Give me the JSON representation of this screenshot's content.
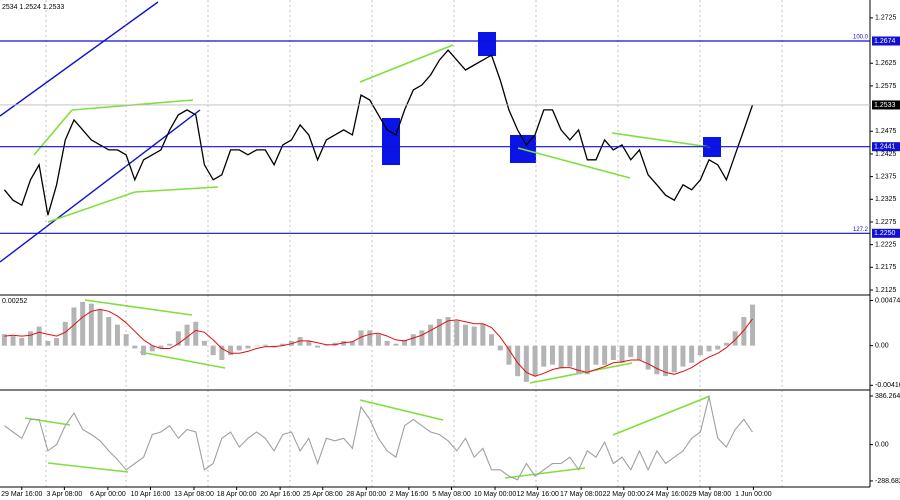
{
  "chart_data": {
    "type": "financial",
    "header": "2534 1.2524 1.2533",
    "x": [
      0,
      1,
      2,
      3,
      4,
      5,
      6,
      7,
      8,
      9,
      10,
      11,
      12,
      13,
      14,
      15,
      16,
      17,
      18,
      19,
      20,
      21,
      22,
      23,
      24,
      25,
      26,
      27,
      28,
      29,
      30,
      31,
      32,
      33,
      34,
      35,
      36,
      37,
      38,
      39,
      40,
      41,
      42,
      43,
      44,
      45,
      46,
      47,
      48,
      49,
      50,
      51,
      52,
      53,
      54,
      55,
      56,
      57,
      58,
      59,
      60,
      61,
      62,
      63,
      64,
      65,
      66,
      67,
      68,
      69,
      70,
      71,
      72,
      73,
      74,
      75,
      76,
      77,
      78,
      79,
      80,
      81,
      82,
      83,
      84,
      85,
      86
    ],
    "xlim": [
      -0.5,
      99.5
    ],
    "xticks": [
      {
        "value": 2,
        "label": "29 Mar 16:00"
      },
      {
        "value": 6.9,
        "label": "3 Apr 08:00"
      },
      {
        "value": 11.9,
        "label": "6 Apr 00:00"
      },
      {
        "value": 16.8,
        "label": "10 Apr 16:00"
      },
      {
        "value": 21.8,
        "label": "13 Apr 08:00"
      },
      {
        "value": 26.7,
        "label": "18 Apr 00:00"
      },
      {
        "value": 31.7,
        "label": "20 Apr 16:00"
      },
      {
        "value": 36.6,
        "label": "25 Apr 08:00"
      },
      {
        "value": 41.6,
        "label": "28 Apr 00:00"
      },
      {
        "value": 46.5,
        "label": "2 May 16:00"
      },
      {
        "value": 51.4,
        "label": "5 May 08:00"
      },
      {
        "value": 56.4,
        "label": "10 May 00:00"
      },
      {
        "value": 61.3,
        "label": "12 May 16:00"
      },
      {
        "value": 66.3,
        "label": "17 May 08:00"
      },
      {
        "value": 71.2,
        "label": "22 May 00:00"
      },
      {
        "value": 76.2,
        "label": "24 May 16:00"
      },
      {
        "value": 81.1,
        "label": "29 May 08:00"
      },
      {
        "value": 86.1,
        "label": "1 Jun 00:00"
      }
    ],
    "panels": [
      {
        "type": "line",
        "color": "#000000",
        "ylim": [
          1.2114,
          1.276
        ],
        "yticks": [
          1.2725,
          1.2625,
          1.2575,
          1.2475,
          1.2425,
          1.2375,
          1.2325,
          1.2275,
          1.2225,
          1.2175,
          1.2125
        ],
        "values": [
          1.2346,
          1.2323,
          1.2312,
          1.2368,
          1.2401,
          1.229,
          1.2357,
          1.2456,
          1.25,
          1.2478,
          1.2456,
          1.2445,
          1.2434,
          1.2434,
          1.2423,
          1.2368,
          1.2412,
          1.2423,
          1.2434,
          1.2478,
          1.2511,
          1.2522,
          1.2511,
          1.2401,
          1.2368,
          1.2379,
          1.2434,
          1.2434,
          1.2423,
          1.2434,
          1.2434,
          1.2401,
          1.2445,
          1.2456,
          1.2489,
          1.2467,
          1.2412,
          1.2456,
          1.2467,
          1.2478,
          1.2467,
          1.2555,
          1.2544,
          1.2511,
          1.2478,
          1.2467,
          1.2522,
          1.2566,
          1.2577,
          1.2599,
          1.2632,
          1.2654,
          1.2632,
          1.261,
          1.2621,
          1.2632,
          1.2643,
          1.2588,
          1.2522,
          1.2478,
          1.2445,
          1.2467,
          1.2522,
          1.2522,
          1.2478,
          1.2456,
          1.2478,
          1.2412,
          1.2412,
          1.2456,
          1.2434,
          1.2445,
          1.2412,
          1.2434,
          1.2379,
          1.2357,
          1.2334,
          1.2323,
          1.2357,
          1.2346,
          1.2368,
          1.2412,
          1.2401,
          1.2368,
          1.2423,
          1.2478,
          1.2533
        ],
        "levels": [
          {
            "value": 1.2674,
            "label": "1.2674",
            "fib": "100.0"
          },
          {
            "value": 1.2441,
            "label": "1.2441"
          },
          {
            "value": 1.225,
            "label": "1.2250",
            "fib": "127.2"
          }
        ],
        "last_price": 1.2533
      },
      {
        "type": "bar",
        "header": "0.00252",
        "color": "#b4b4b4",
        "ylim": [
          -0.00465,
          0.0051
        ],
        "yticks": [
          0.00474,
          {
            "value": 0,
            "label": "0.00"
          },
          -0.00416
        ],
        "values": [
          0.0012,
          0.001,
          0.0008,
          0.0015,
          0.002,
          0.0005,
          0.0008,
          0.0025,
          0.004,
          0.0046,
          0.0044,
          0.0038,
          0.003,
          0.0022,
          0.0012,
          -0.0003,
          -0.001,
          -0.0006,
          -0.0003,
          0.0002,
          0.0015,
          0.0022,
          0.0025,
          0.0005,
          -0.001,
          -0.0015,
          -0.001,
          -0.0005,
          -0.0003,
          0,
          0.0001,
          -0.0002,
          0.0002,
          0.0005,
          0.0009,
          0.0005,
          -0.0002,
          0,
          0.0003,
          0.0005,
          0.0004,
          0.0016,
          0.0016,
          0.0012,
          0.0005,
          0.0002,
          0.0006,
          0.0012,
          0.0016,
          0.0022,
          0.0028,
          0.003,
          0.0026,
          0.0022,
          0.002,
          0.0023,
          0.0012,
          -0.0005,
          -0.002,
          -0.0032,
          -0.0038,
          -0.0032,
          -0.0022,
          -0.002,
          -0.0024,
          -0.0022,
          -0.003,
          -0.003,
          -0.002,
          -0.002,
          -0.0015,
          -0.0018,
          -0.0012,
          -0.0015,
          -0.0025,
          -0.003,
          -0.0032,
          -0.0028,
          -0.0022,
          -0.0018,
          -0.001,
          -0.0006,
          -0.0004,
          0.0003,
          0.0015,
          0.003,
          0.0043
        ],
        "signal": {
          "color": "#e01010",
          "values": [
            0.001,
            0.0011,
            0.001,
            0.0011,
            0.0014,
            0.0012,
            0.001,
            0.0014,
            0.0022,
            0.003,
            0.0036,
            0.0038,
            0.0036,
            0.0031,
            0.0024,
            0.0015,
            0.0006,
            0,
            -0.0003,
            -0.0003,
            0.0002,
            0.0009,
            0.0016,
            0.0014,
            0.0006,
            -0.0003,
            -0.0008,
            -0.0008,
            -0.0006,
            -0.0003,
            -0.0001,
            -0.0001,
            0,
            0.0002,
            0.0005,
            0.0005,
            0.0003,
            0.0001,
            0.0001,
            0.0003,
            0.0004,
            0.0009,
            0.0012,
            0.0013,
            0.001,
            0.0006,
            0.0005,
            0.0008,
            0.0011,
            0.0016,
            0.0021,
            0.0026,
            0.0027,
            0.0025,
            0.0023,
            0.0023,
            0.0019,
            0.0009,
            -0.0004,
            -0.0018,
            -0.0028,
            -0.0032,
            -0.0029,
            -0.0025,
            -0.0023,
            -0.0023,
            -0.0026,
            -0.0028,
            -0.0025,
            -0.0022,
            -0.0018,
            -0.0017,
            -0.0015,
            -0.0015,
            -0.0019,
            -0.0024,
            -0.0028,
            -0.003,
            -0.0027,
            -0.0023,
            -0.0017,
            -0.0012,
            -0.0008,
            -0.0002,
            0.0006,
            0.0016,
            0.0028
          ]
        }
      },
      {
        "type": "line",
        "color": "#a0a0a0",
        "ylim": [
          -337,
          418
        ],
        "yticks": [
          386.2645,
          {
            "value": 0,
            "label": "0.00"
          },
          -288.682
        ],
        "values": [
          150,
          100,
          50,
          200,
          200,
          -50,
          0,
          150,
          250,
          120,
          80,
          30,
          -50,
          -120,
          -200,
          -150,
          -100,
          80,
          100,
          150,
          50,
          120,
          100,
          -200,
          -150,
          50,
          100,
          -20,
          50,
          100,
          50,
          -50,
          80,
          100,
          -50,
          50,
          -150,
          50,
          30,
          50,
          -30,
          300,
          200,
          50,
          -50,
          -100,
          150,
          200,
          150,
          100,
          80,
          30,
          -50,
          50,
          -100,
          -30,
          -200,
          -200,
          -250,
          -280,
          -150,
          -250,
          -200,
          -150,
          -150,
          -100,
          -200,
          -50,
          -100,
          20,
          -150,
          -100,
          -200,
          -50,
          -200,
          -50,
          -150,
          -100,
          -50,
          50,
          100,
          380,
          50,
          -20,
          120,
          200,
          100
        ]
      }
    ]
  }
}
